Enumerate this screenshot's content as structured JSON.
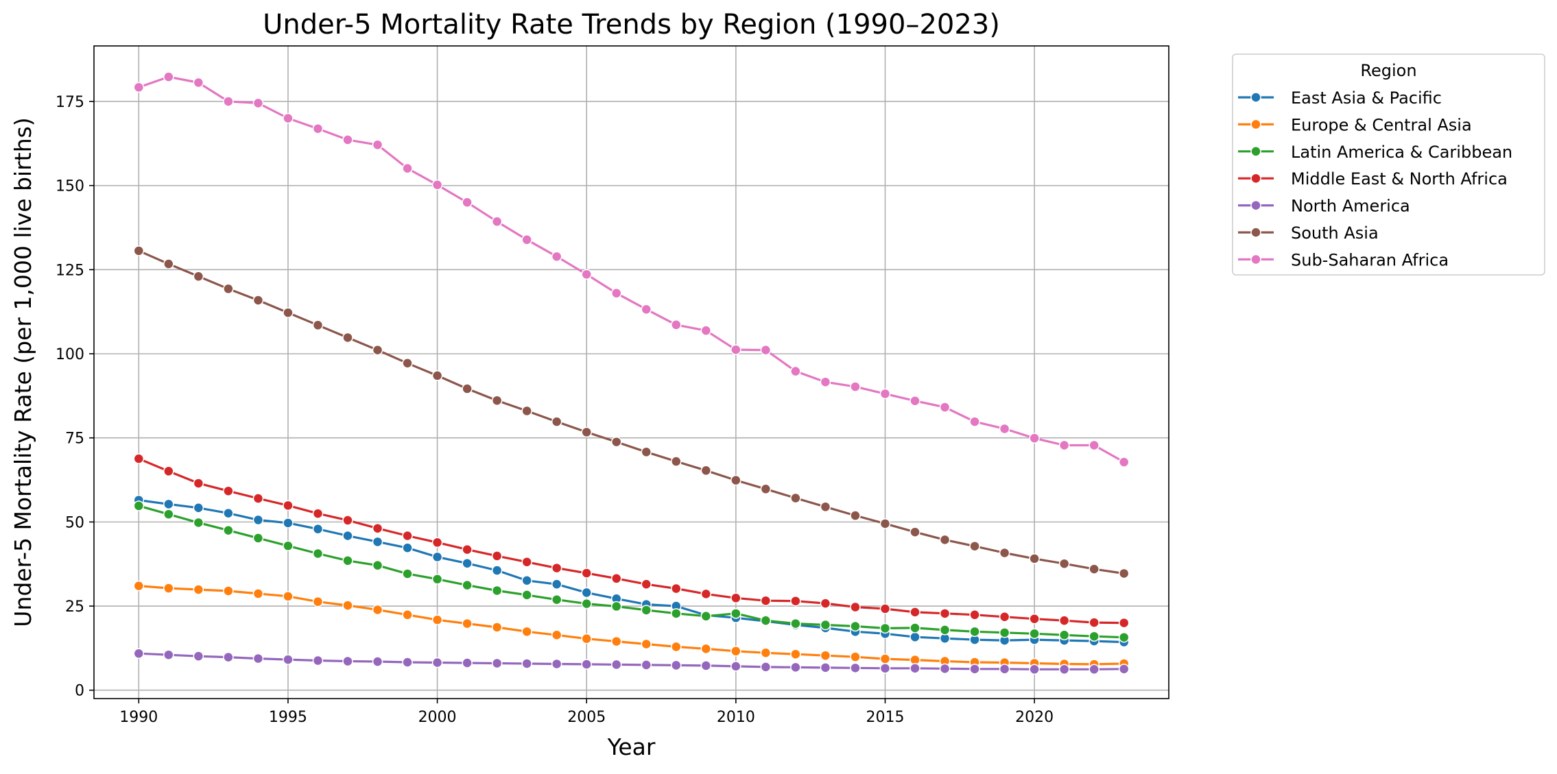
{
  "chart_data": {
    "type": "line",
    "title": "Under-5 Mortality Rate Trends by Region (1990–2023)",
    "xlabel": "Year",
    "ylabel": "Under-5 Mortality Rate (per 1,000 live births)",
    "xlim": [
      1988.5,
      2024.5
    ],
    "ylim": [
      -2.5,
      191.5
    ],
    "xticks": [
      1990,
      1995,
      2000,
      2005,
      2010,
      2015,
      2020
    ],
    "yticks": [
      0,
      25,
      50,
      75,
      100,
      125,
      150,
      175
    ],
    "grid": true,
    "legend": {
      "title": "Region",
      "placement": "outside top-right"
    },
    "x": [
      1990,
      1991,
      1992,
      1993,
      1994,
      1995,
      1996,
      1997,
      1998,
      1999,
      2000,
      2001,
      2002,
      2003,
      2004,
      2005,
      2006,
      2007,
      2008,
      2009,
      2010,
      2011,
      2012,
      2013,
      2014,
      2015,
      2016,
      2017,
      2018,
      2019,
      2020,
      2021,
      2022,
      2023
    ],
    "series": [
      {
        "name": "East Asia & Pacific",
        "color": "#1f77b4",
        "values": [
          56.5,
          55.3,
          54.2,
          52.6,
          50.6,
          49.7,
          47.9,
          45.9,
          44.1,
          42.3,
          39.6,
          37.7,
          35.6,
          32.6,
          31.5,
          29.0,
          27.2,
          25.5,
          25.0,
          22.3,
          21.5,
          20.5,
          19.4,
          18.5,
          17.4,
          16.8,
          15.8,
          15.4,
          15.0,
          14.8,
          15.0,
          14.8,
          14.6,
          14.3
        ]
      },
      {
        "name": "Europe & Central Asia",
        "color": "#ff7f0e",
        "values": [
          31.0,
          30.3,
          29.9,
          29.5,
          28.7,
          27.9,
          26.3,
          25.2,
          23.9,
          22.4,
          20.9,
          19.8,
          18.7,
          17.4,
          16.4,
          15.3,
          14.5,
          13.7,
          12.9,
          12.3,
          11.6,
          11.1,
          10.7,
          10.3,
          9.9,
          9.3,
          9.0,
          8.6,
          8.3,
          8.2,
          8.0,
          7.8,
          7.7,
          7.9
        ]
      },
      {
        "name": "Latin America & Caribbean",
        "color": "#2ca02c",
        "values": [
          54.8,
          52.3,
          49.8,
          47.5,
          45.2,
          42.9,
          40.6,
          38.5,
          37.1,
          34.6,
          33.0,
          31.2,
          29.6,
          28.3,
          26.9,
          25.7,
          24.9,
          23.8,
          22.8,
          22.0,
          22.8,
          20.7,
          19.8,
          19.4,
          19.0,
          18.4,
          18.5,
          17.9,
          17.4,
          17.1,
          16.8,
          16.4,
          16.0,
          15.7
        ]
      },
      {
        "name": "Middle East & North Africa",
        "color": "#d62728",
        "values": [
          68.8,
          65.1,
          61.5,
          59.2,
          57.0,
          54.9,
          52.5,
          50.5,
          48.1,
          45.9,
          43.9,
          41.8,
          39.9,
          38.1,
          36.3,
          34.8,
          33.2,
          31.5,
          30.2,
          28.6,
          27.4,
          26.6,
          26.5,
          25.8,
          24.7,
          24.2,
          23.2,
          22.8,
          22.4,
          21.8,
          21.2,
          20.7,
          20.1,
          20.0
        ]
      },
      {
        "name": "North America",
        "color": "#9467bd",
        "values": [
          10.9,
          10.5,
          10.1,
          9.8,
          9.4,
          9.1,
          8.8,
          8.6,
          8.5,
          8.3,
          8.2,
          8.1,
          8.0,
          7.9,
          7.8,
          7.7,
          7.6,
          7.5,
          7.4,
          7.3,
          7.1,
          6.9,
          6.8,
          6.7,
          6.6,
          6.5,
          6.5,
          6.4,
          6.3,
          6.3,
          6.2,
          6.2,
          6.2,
          6.3
        ]
      },
      {
        "name": "South Asia",
        "color": "#8c564b",
        "values": [
          130.6,
          126.7,
          123.0,
          119.3,
          115.9,
          112.2,
          108.5,
          104.8,
          101.1,
          97.2,
          93.5,
          89.6,
          86.1,
          83.0,
          79.8,
          76.7,
          73.8,
          70.8,
          68.0,
          65.3,
          62.4,
          59.8,
          57.1,
          54.5,
          51.9,
          49.5,
          47.0,
          44.7,
          42.8,
          40.8,
          39.1,
          37.6,
          36.0,
          34.7
        ]
      },
      {
        "name": "Sub-Saharan Africa",
        "color": "#e377c2",
        "values": [
          179.2,
          182.3,
          180.6,
          175.0,
          174.5,
          170.0,
          166.9,
          163.6,
          162.1,
          155.1,
          150.2,
          145.0,
          139.3,
          133.9,
          128.9,
          123.6,
          118.0,
          113.2,
          108.6,
          106.9,
          101.2,
          101.1,
          94.8,
          91.6,
          90.2,
          88.1,
          86.0,
          84.1,
          79.8,
          77.7,
          74.9,
          72.8,
          72.8,
          67.8
        ]
      }
    ]
  }
}
